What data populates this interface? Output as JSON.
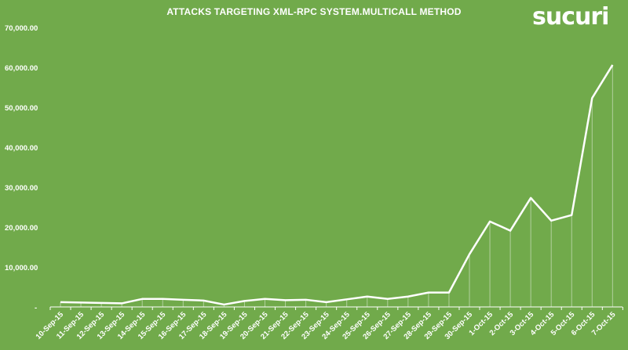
{
  "chart_data": {
    "type": "line",
    "title": "ATTACKS TARGETING XML-RPC SYSTEM.MULTICALL METHOD",
    "brand": "sucuri",
    "categories": [
      "10-Sep-15",
      "11-Sep-15",
      "12-Sep-15",
      "13-Sep-15",
      "14-Sep-15",
      "15-Sep-15",
      "16-Sep-15",
      "17-Sep-15",
      "18-Sep-15",
      "19-Sep-15",
      "20-Sep-15",
      "21-Sep-15",
      "22-Sep-15",
      "23-Sep-15",
      "24-Sep-15",
      "25-Sep-15",
      "26-Sep-15",
      "27-Sep-15",
      "28-Sep-15",
      "29-Sep-15",
      "30-Sep-15",
      "1-Oct-15",
      "2-Oct-15",
      "3-Oct-15",
      "4-Oct-15",
      "5-Oct-15",
      "6-Oct-15",
      "7-Oct-15"
    ],
    "values": [
      1200,
      1100,
      1000,
      900,
      2000,
      2000,
      1800,
      1600,
      600,
      1500,
      2000,
      1700,
      1800,
      1200,
      1900,
      2600,
      2000,
      2600,
      3600,
      3600,
      13200,
      21400,
      19100,
      27300,
      21600,
      23000,
      52300,
      60600
    ],
    "yticks": [
      "-",
      "10,000.00",
      "20,000.00",
      "30,000.00",
      "40,000.00",
      "50,000.00",
      "60,000.00",
      "70,000.00"
    ],
    "ylim": [
      0,
      70000
    ],
    "xlabel": "",
    "ylabel": "",
    "grid": false,
    "colors": {
      "background": "#71aa4b",
      "line": "#ffffff"
    }
  }
}
